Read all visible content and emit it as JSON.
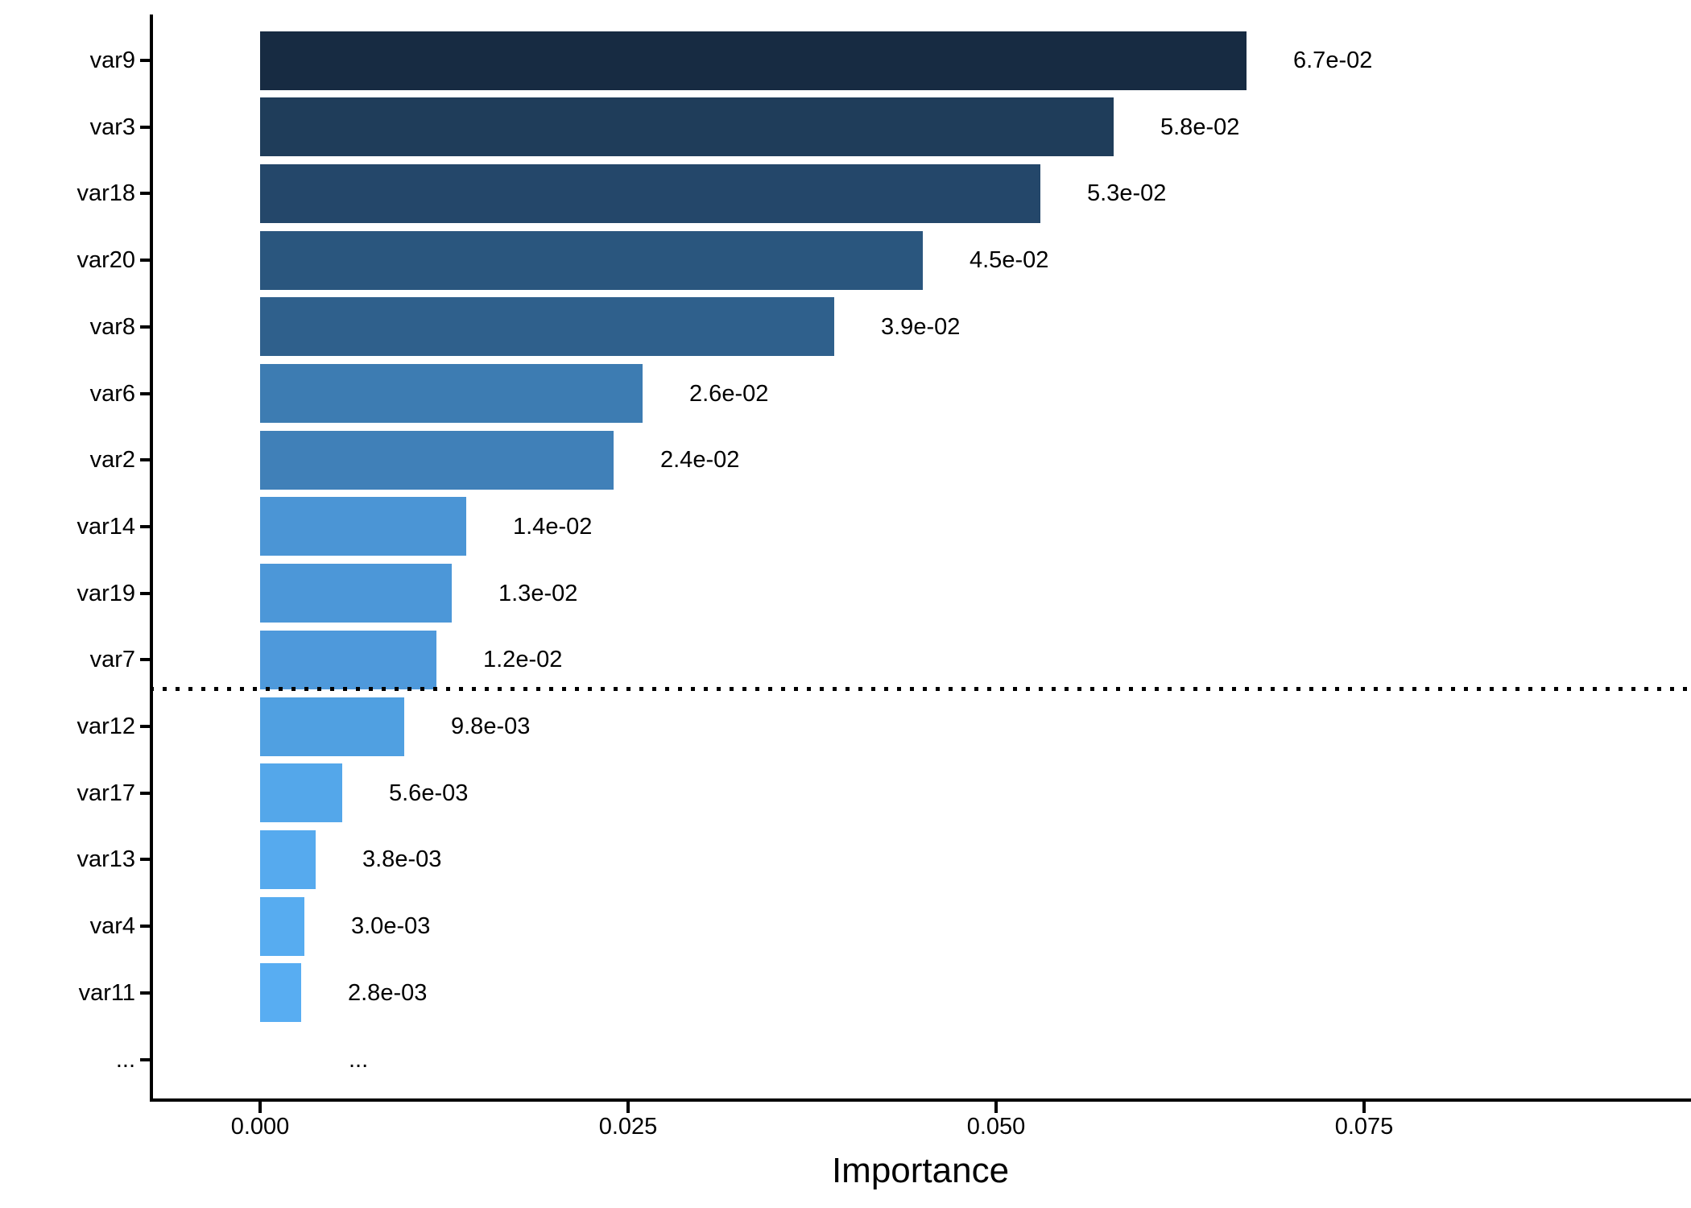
{
  "chart_data": {
    "type": "bar",
    "orientation": "horizontal",
    "title": "",
    "xlabel": "Importance",
    "ylabel": "",
    "categories": [
      "var9",
      "var3",
      "var18",
      "var20",
      "var8",
      "var6",
      "var2",
      "var14",
      "var19",
      "var7",
      "var12",
      "var17",
      "var13",
      "var4",
      "var11"
    ],
    "values": [
      0.067,
      0.058,
      0.053,
      0.045,
      0.039,
      0.026,
      0.024,
      0.014,
      0.013,
      0.012,
      0.0098,
      0.0056,
      0.0038,
      0.003,
      0.0028
    ],
    "value_labels": [
      "6.7e-02",
      "5.8e-02",
      "5.3e-02",
      "4.5e-02",
      "3.9e-02",
      "2.6e-02",
      "2.4e-02",
      "1.4e-02",
      "1.3e-02",
      "1.2e-02",
      "9.8e-03",
      "5.6e-03",
      "3.8e-03",
      "3.0e-03",
      "2.8e-03"
    ],
    "bar_colors": [
      "#172B42",
      "#1F3D5A",
      "#24476A",
      "#2A567E",
      "#2F608C",
      "#3D7CB2",
      "#4080B8",
      "#4B95D5",
      "#4C97D8",
      "#4E99DB",
      "#50A0E1",
      "#54A7EA",
      "#56AAEE",
      "#57ACF0",
      "#58ADF2"
    ],
    "x_ticks": {
      "labels": [
        "0.000",
        "0.025",
        "0.050",
        "0.075"
      ],
      "values": [
        0,
        0.025,
        0.05,
        0.075
      ]
    },
    "axis_range": [
      -0.0074,
      0.0972
    ],
    "threshold_line": {
      "style": "dotted",
      "color": "#000000",
      "after_category": "var7",
      "before_category": "var12"
    },
    "ellipsis_row": {
      "axis_label": "...",
      "plot_label": "..."
    },
    "grid": false,
    "legend": false,
    "axis_color": "#000000",
    "text_color": "#000000"
  }
}
